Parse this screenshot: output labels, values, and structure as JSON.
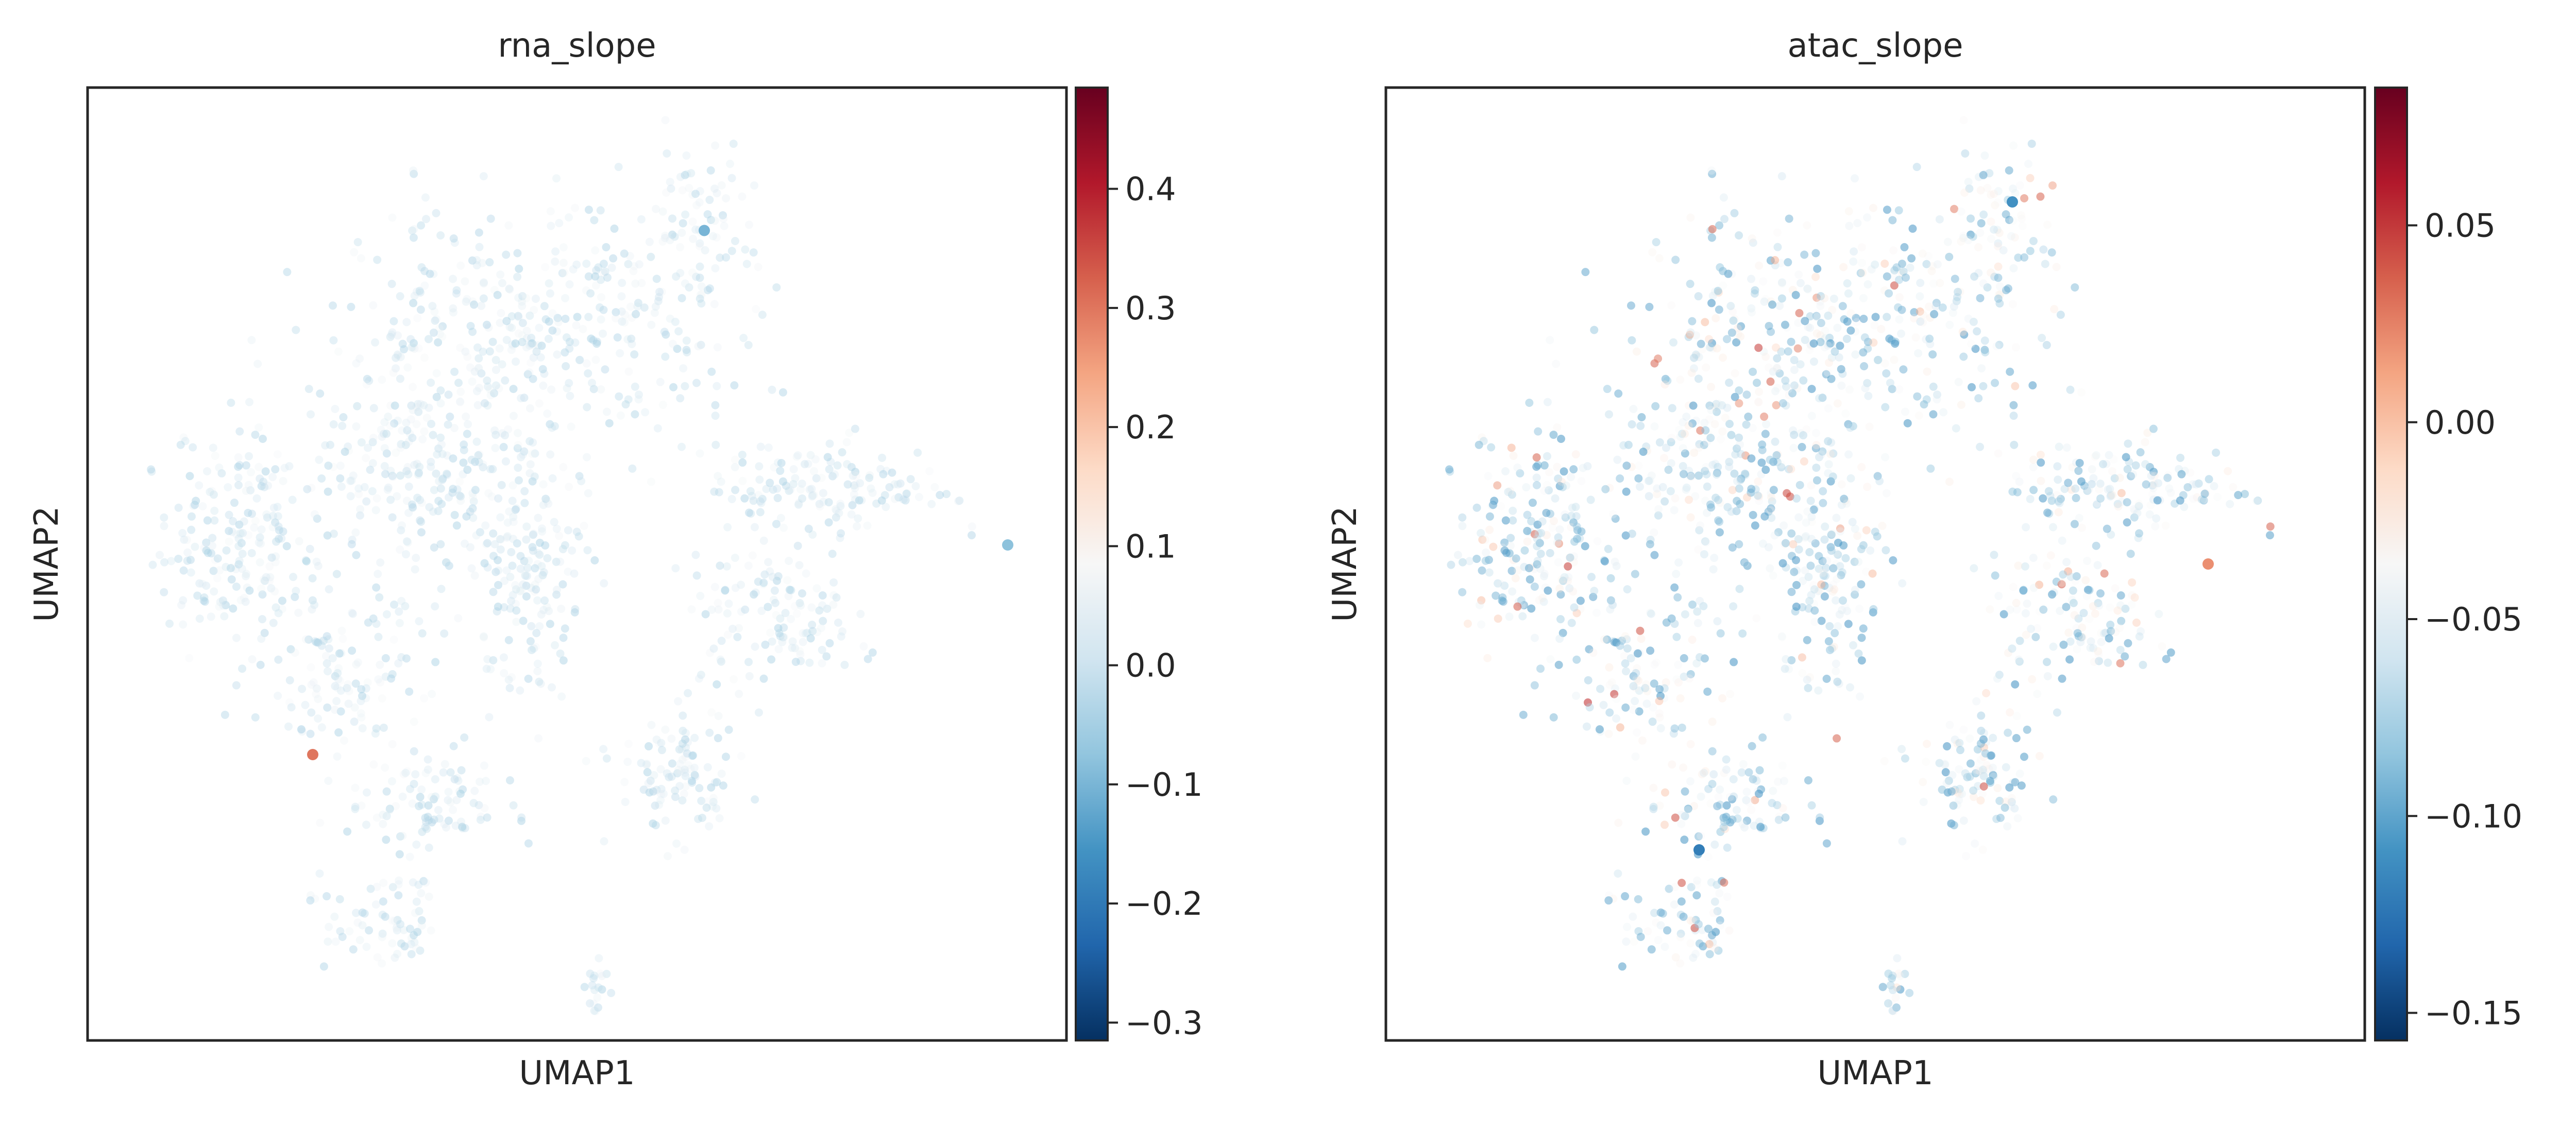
{
  "figure": {
    "panels": [
      {
        "title": "rna_slope",
        "xlabel": "UMAP1",
        "ylabel": "UMAP2",
        "colorbar_ticks": [
          {
            "value": 0.4,
            "label": "0.4"
          },
          {
            "value": 0.3,
            "label": "0.3"
          },
          {
            "value": 0.2,
            "label": "0.2"
          },
          {
            "value": 0.1,
            "label": "0.1"
          },
          {
            "value": 0.0,
            "label": "0.0"
          },
          {
            "value": -0.1,
            "label": "−0.1"
          },
          {
            "value": -0.2,
            "label": "−0.2"
          },
          {
            "value": -0.3,
            "label": "−0.3"
          }
        ]
      },
      {
        "title": "atac_slope",
        "xlabel": "UMAP1",
        "ylabel": "UMAP2",
        "colorbar_ticks": [
          {
            "value": 0.05,
            "label": "0.05"
          },
          {
            "value": 0.0,
            "label": "0.00"
          },
          {
            "value": -0.05,
            "label": "−0.05"
          },
          {
            "value": -0.1,
            "label": "−0.10"
          },
          {
            "value": -0.15,
            "label": "−0.15"
          }
        ]
      }
    ]
  },
  "chart_data": [
    {
      "type": "scatter",
      "title": "rna_slope",
      "xlabel": "UMAP1",
      "ylabel": "UMAP2",
      "colormap": "RdBu_r",
      "colorbar_range": [
        -0.315,
        0.485
      ],
      "colormap_stops": [
        "#053061",
        "#2166ac",
        "#4393c3",
        "#92c5de",
        "#d1e5f0",
        "#f7f7f7",
        "#fddbc7",
        "#f4a582",
        "#d6604d",
        "#b2182b",
        "#67001f"
      ],
      "ticks_visible": false,
      "grid": false,
      "point_summary": "about 2000 cells forming a lobed UMAP embedding; nearly all values between -0.1 and 0.1; darkest blue points near the upper-right lobe; a single dark red outlier in the lower-left region",
      "notable_points": [
        {
          "umap1": 0.23,
          "umap2": 0.3,
          "value": 0.3
        },
        {
          "umap1": 0.94,
          "umap2": 0.52,
          "value": -0.08
        },
        {
          "umap1": 0.63,
          "umap2": 0.85,
          "value": -0.1
        }
      ]
    },
    {
      "type": "scatter",
      "title": "atac_slope",
      "xlabel": "UMAP1",
      "ylabel": "UMAP2",
      "colormap": "RdBu_r",
      "colorbar_range": [
        -0.157,
        0.085
      ],
      "colormap_stops": [
        "#053061",
        "#2166ac",
        "#4393c3",
        "#92c5de",
        "#d1e5f0",
        "#f7f7f7",
        "#fddbc7",
        "#f4a582",
        "#d6604d",
        "#b2182b",
        "#67001f"
      ],
      "ticks_visible": false,
      "grid": false,
      "point_summary": "about 2000 cells with the same layout; most values between -0.1 and -0.03; scattered light-red points between 0.0 and 0.03",
      "notable_points": [
        {
          "umap1": 0.84,
          "umap2": 0.5,
          "value": 0.02
        },
        {
          "umap1": 0.64,
          "umap2": 0.88,
          "value": -0.11
        },
        {
          "umap1": 0.32,
          "umap2": 0.2,
          "value": -0.12
        }
      ]
    }
  ]
}
